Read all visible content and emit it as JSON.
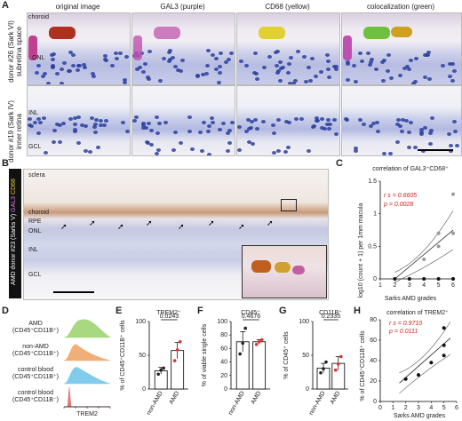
{
  "panels": {
    "A": {
      "label": "A",
      "columns": [
        "original image",
        "GAL3 (purple)",
        "CD68 (yellow)",
        "colocalization (green)"
      ],
      "rows": [
        {
          "donor": "donor #26 (Sark VI)",
          "region": "subretina space",
          "labels": [
            "choroid",
            "ONL"
          ]
        },
        {
          "donor": "donor #19 (Sark IV)",
          "region": "inner retina",
          "labels": [
            "INL",
            "GCL"
          ]
        }
      ]
    },
    "B": {
      "label": "B",
      "side_label_1": "AMD donor #23 (Sarks V)",
      "side_label_2": "GAL3",
      "side_label_3": "CD68",
      "layers": [
        "sclera",
        "choroid",
        "RPE",
        "ONL",
        "INL",
        "GCL"
      ]
    },
    "C": {
      "label": "C",
      "title": "correlation of GAL3⁺CD68⁺",
      "ylabel": "log10 (count + 1) per 1mm macula",
      "xlabel": "Sarks AMD grades",
      "stat1": "r s = 0.6605",
      "stat2": "p = 0.0028"
    },
    "D": {
      "label": "D",
      "xlabel": "TREM2",
      "rows": [
        {
          "l1": "AMD",
          "l2": "(CD45⁺CD11B⁺)",
          "color": "#9ad36a"
        },
        {
          "l1": "non-AMD",
          "l2": "(CD45⁺CD11B⁺)",
          "color": "#f0a060"
        },
        {
          "l1": "control blood",
          "l2": "(CD45⁺CD11B⁺)",
          "color": "#6cc4ea"
        },
        {
          "l1": "control blood",
          "l2": "(CD45⁺CD11B⁻)",
          "color": "#e06060"
        }
      ]
    },
    "E": {
      "label": "E",
      "title": "TREM2⁺",
      "ylabel": "% of CD45⁺CD11B⁺ cells",
      "pval": "0.0243"
    },
    "F": {
      "label": "F",
      "title": "CD45⁺",
      "ylabel": "% of viable single cells",
      "pval": "0.4676"
    },
    "G": {
      "label": "G",
      "title": "CD11B⁺",
      "ylabel": "% of CD45⁺ cells",
      "pval": "0.2335"
    },
    "H": {
      "label": "H",
      "title": "correlation of TREM2⁺",
      "ylabel": "% of CD45⁺CD11B⁺ cells",
      "xlabel": "Sarks AMD grades",
      "stat1": "r s = 0.9710",
      "stat2": "p = 0.0111"
    }
  },
  "chart_data": [
    {
      "type": "scatter",
      "panel": "C",
      "title": "correlation of GAL3⁺CD68⁺",
      "xlabel": "Sarks AMD grades",
      "ylabel": "log10 (count + 1) per 1mm macula",
      "xlim": [
        1,
        6
      ],
      "ylim": [
        0,
        1.5
      ],
      "xticks": [
        1,
        2,
        3,
        4,
        5,
        6
      ],
      "yticks": [
        0,
        0.5,
        1,
        1.5
      ],
      "points": [
        [
          2,
          0
        ],
        [
          3,
          0
        ],
        [
          4,
          0
        ],
        [
          5,
          0
        ],
        [
          6,
          0
        ],
        [
          4,
          0.3
        ],
        [
          5,
          0.5
        ],
        [
          5,
          0.7
        ],
        [
          6,
          0.7
        ],
        [
          6,
          1.3
        ]
      ],
      "fit": {
        "x": [
          2,
          6
        ],
        "y": [
          0.0,
          0.75
        ]
      }
    },
    {
      "type": "bar",
      "panel": "E",
      "title": "TREM2⁺",
      "categories": [
        "non-AMD",
        "AMD"
      ],
      "values": [
        27,
        57
      ],
      "errors": [
        5,
        12
      ],
      "points": [
        [
          22,
          28,
          31
        ],
        [
          42,
          58,
          70
        ]
      ],
      "ylim": [
        0,
        100
      ],
      "yticks": [
        0,
        50,
        100
      ]
    },
    {
      "type": "bar",
      "panel": "F",
      "title": "CD45⁺",
      "categories": [
        "non-AMD",
        "AMD"
      ],
      "values": [
        70,
        70
      ],
      "errors": [
        15,
        3
      ],
      "points": [
        [
          52,
          68,
          90
        ],
        [
          66,
          70,
          73
        ]
      ],
      "ylim": [
        0,
        100
      ],
      "yticks": [
        0,
        20,
        40,
        60,
        80,
        100
      ]
    },
    {
      "type": "bar",
      "panel": "G",
      "title": "CD11B⁺",
      "categories": [
        "non-AMD",
        "AMD"
      ],
      "values": [
        31,
        38
      ],
      "errors": [
        7,
        10
      ],
      "points": [
        [
          24,
          30,
          40
        ],
        [
          28,
          37,
          48
        ]
      ],
      "ylim": [
        0,
        100
      ],
      "yticks": [
        0,
        50,
        100
      ]
    },
    {
      "type": "scatter",
      "panel": "H",
      "title": "correlation of TREM2⁺",
      "xlabel": "Sarks AMD grades",
      "ylabel": "% of CD45⁺CD11B⁺ cells",
      "xlim": [
        0,
        6
      ],
      "ylim": [
        0,
        80
      ],
      "xticks": [
        0,
        1,
        2,
        3,
        4,
        5,
        6
      ],
      "yticks": [
        0,
        20,
        40,
        60,
        80
      ],
      "points": [
        [
          2,
          22
        ],
        [
          3,
          26
        ],
        [
          4,
          38
        ],
        [
          5,
          45
        ],
        [
          5,
          55
        ],
        [
          5,
          72
        ]
      ],
      "fit": {
        "x": [
          1.5,
          5.5
        ],
        "y": [
          18,
          62
        ]
      }
    }
  ]
}
